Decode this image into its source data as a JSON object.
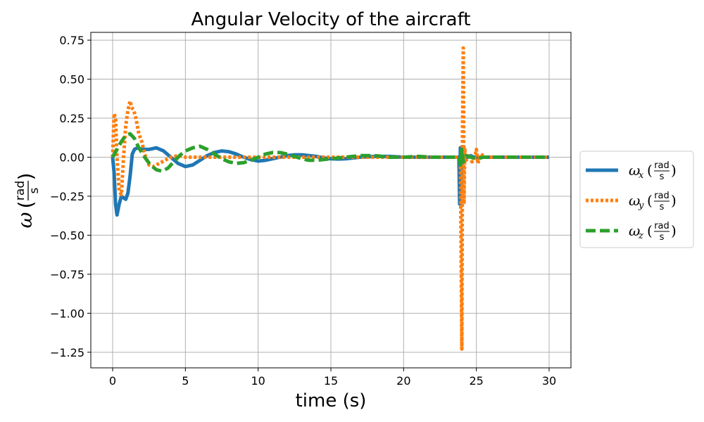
{
  "chart_data": {
    "type": "line",
    "title": "Angular Velocity of the aircraft",
    "xlabel": "time (s)",
    "ylabel": "ω (rad/s)",
    "ylabel_parts": {
      "symbol": "ω",
      "num": "rad",
      "den": "s"
    },
    "xlim": [
      -1.5,
      31.5
    ],
    "ylim": [
      -1.35,
      0.8
    ],
    "xticks": [
      0,
      5,
      10,
      15,
      20,
      25,
      30
    ],
    "xtick_labels": [
      "0",
      "5",
      "10",
      "15",
      "20",
      "25",
      "30"
    ],
    "yticks": [
      0.75,
      0.5,
      0.25,
      0.0,
      -0.25,
      -0.5,
      -0.75,
      -1.0,
      -1.25
    ],
    "ytick_labels": [
      "0.75",
      "0.50",
      "0.25",
      "0.00",
      "−0.25",
      "−0.50",
      "−0.75",
      "−1.00",
      "−1.25"
    ],
    "grid": true,
    "legend_position": "outside-right",
    "series": [
      {
        "name": "ωx (rad/s)",
        "symbol": "ω",
        "sub": "x",
        "num": "rad",
        "den": "s",
        "color": "#1f77b4",
        "style": "solid",
        "x": [
          0,
          0.1,
          0.2,
          0.3,
          0.45,
          0.6,
          0.75,
          0.9,
          1.05,
          1.2,
          1.35,
          1.5,
          1.7,
          2.0,
          2.5,
          3.0,
          3.5,
          4.0,
          4.5,
          5.0,
          5.5,
          6.0,
          6.5,
          7.0,
          7.5,
          8.0,
          8.5,
          9.0,
          9.5,
          10.0,
          10.5,
          11.0,
          11.5,
          12.0,
          12.5,
          13.0,
          13.5,
          14.0,
          14.5,
          15.0,
          15.5,
          16.0,
          17.0,
          18.0,
          19.0,
          20.0,
          21.0,
          22.0,
          23.0,
          23.8,
          23.85,
          23.9,
          23.95,
          24.0,
          24.05,
          24.1,
          24.2,
          24.4,
          24.6,
          24.8,
          25.0,
          25.3,
          25.6,
          26.0,
          27.0,
          28.0,
          29.0,
          30.0
        ],
        "y": [
          0.0,
          -0.1,
          -0.3,
          -0.37,
          -0.3,
          -0.25,
          -0.26,
          -0.27,
          -0.23,
          -0.12,
          0.02,
          0.05,
          0.06,
          0.05,
          0.05,
          0.06,
          0.04,
          0.0,
          -0.04,
          -0.06,
          -0.05,
          -0.02,
          0.01,
          0.03,
          0.04,
          0.035,
          0.02,
          0.0,
          -0.015,
          -0.025,
          -0.02,
          -0.01,
          0.0,
          0.01,
          0.015,
          0.015,
          0.01,
          0.005,
          -0.005,
          -0.01,
          -0.012,
          -0.01,
          0.0,
          0.005,
          0.005,
          0.0,
          0.0,
          0.0,
          0.0,
          0.0,
          -0.3,
          0.06,
          -0.2,
          0.0,
          0.01,
          0.0,
          -0.01,
          0.0,
          0.01,
          0.0,
          0.0,
          0.0,
          0.0,
          0.0,
          0.0,
          0.0,
          0.0,
          0.0
        ]
      },
      {
        "name": "ωy (rad/s)",
        "symbol": "ω",
        "sub": "y",
        "num": "rad",
        "den": "s",
        "color": "#ff7f0e",
        "style": "dotted",
        "x": [
          0,
          0.1,
          0.2,
          0.3,
          0.45,
          0.6,
          0.75,
          0.9,
          1.05,
          1.2,
          1.3,
          1.45,
          1.6,
          1.8,
          2.0,
          2.2,
          2.5,
          2.8,
          3.2,
          3.6,
          4.0,
          4.5,
          5.0,
          6.0,
          7.0,
          8.0,
          9.0,
          10.0,
          12.0,
          14.0,
          16.0,
          18.0,
          20.0,
          22.0,
          23.5,
          23.9,
          23.95,
          24.0,
          24.05,
          24.1,
          24.15,
          24.2,
          24.3,
          24.5,
          24.7,
          24.9,
          25.0,
          25.1,
          25.3,
          25.6,
          26.0,
          27.0,
          28.0,
          29.0,
          30.0
        ],
        "y": [
          0.0,
          0.28,
          0.25,
          0.0,
          -0.22,
          -0.24,
          0.0,
          0.2,
          0.3,
          0.36,
          0.32,
          0.3,
          0.25,
          0.15,
          0.1,
          0.02,
          -0.05,
          -0.06,
          -0.04,
          -0.02,
          0.0,
          0.01,
          0.0,
          0.0,
          0.0,
          0.0,
          0.0,
          0.0,
          0.0,
          0.0,
          0.0,
          0.0,
          0.0,
          0.0,
          0.0,
          0.0,
          -0.6,
          -1.23,
          0.2,
          0.7,
          -0.3,
          0.05,
          -0.02,
          0.02,
          -0.03,
          0.0,
          0.05,
          -0.04,
          0.02,
          0.0,
          0.0,
          0.0,
          0.0,
          0.0,
          0.0
        ]
      },
      {
        "name": "ωz (rad/s)",
        "symbol": "ω",
        "sub": "z",
        "num": "rad",
        "den": "s",
        "color": "#2ca02c",
        "style": "dashed",
        "x": [
          0,
          0.3,
          0.6,
          0.9,
          1.2,
          1.5,
          1.8,
          2.2,
          2.6,
          3.0,
          3.4,
          3.8,
          4.2,
          4.6,
          5.0,
          5.5,
          6.0,
          6.5,
          7.0,
          7.5,
          8.0,
          8.5,
          9.0,
          9.5,
          10.0,
          10.5,
          11.0,
          11.5,
          12.0,
          12.5,
          13.0,
          13.5,
          14.0,
          14.5,
          15.0,
          16.0,
          17.0,
          18.0,
          19.0,
          20.0,
          21.0,
          22.0,
          23.0,
          23.8,
          23.9,
          24.0,
          24.1,
          24.3,
          24.6,
          25.0,
          25.5,
          26.0,
          27.0,
          28.0,
          29.0,
          30.0
        ],
        "y": [
          0.0,
          0.05,
          0.1,
          0.14,
          0.15,
          0.12,
          0.06,
          0.0,
          -0.05,
          -0.08,
          -0.09,
          -0.07,
          -0.03,
          0.01,
          0.04,
          0.06,
          0.07,
          0.05,
          0.02,
          -0.01,
          -0.03,
          -0.04,
          -0.035,
          -0.02,
          0.0,
          0.02,
          0.03,
          0.03,
          0.02,
          0.005,
          -0.01,
          -0.02,
          -0.02,
          -0.015,
          -0.01,
          0.0,
          0.01,
          0.01,
          0.0,
          0.0,
          0.005,
          0.0,
          0.0,
          0.0,
          -0.05,
          0.05,
          -0.03,
          0.01,
          0.0,
          -0.01,
          0.0,
          0.0,
          0.0,
          0.0,
          0.0,
          0.0
        ]
      }
    ]
  }
}
